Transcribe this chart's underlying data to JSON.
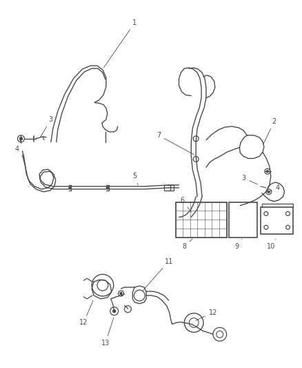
{
  "bg_color": "#ffffff",
  "line_color": "#4a4a4a",
  "label_color": "#4a4a4a",
  "fig_width": 4.38,
  "fig_height": 5.33,
  "dpi": 100,
  "label_fontsize": 7.0
}
